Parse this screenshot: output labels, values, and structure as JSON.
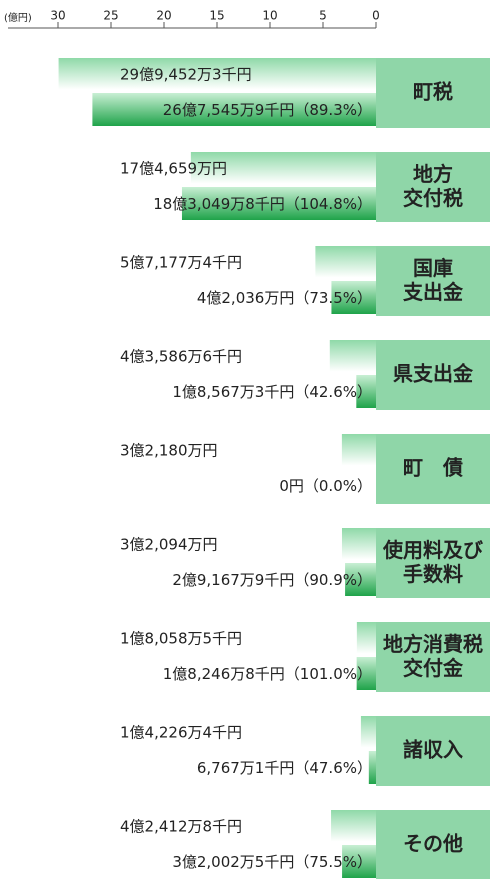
{
  "chart_data": {
    "type": "bar",
    "orientation": "horizontal",
    "axis_label": "(億円)",
    "xlim": [
      30,
      0
    ],
    "xticks": [
      30,
      25,
      20,
      15,
      10,
      5,
      0
    ],
    "categories": [
      "町税",
      "地方\n交付税",
      "国庫\n支出金",
      "県支出金",
      "町　債",
      "使用料及び\n手数料",
      "地方消費税\n交付金",
      "諸収入",
      "その他"
    ],
    "category_color": "#8fd6a8",
    "series": [
      {
        "color": "#8fd9a8",
        "values": [
          29.94523,
          17.4659,
          5.71774,
          4.35866,
          3.218,
          3.2094,
          1.80585,
          1.42264,
          4.24128
        ],
        "value_labels": [
          "29億9,452万3千円",
          "17億4,659万円",
          "5億7,177万4千円",
          "4億3,586万6千円",
          "3億2,180万円",
          "3億2,094万円",
          "1億8,058万5千円",
          "1億4,226万4千円",
          "4億2,412万8千円"
        ]
      },
      {
        "color": "#1fa34a",
        "values": [
          26.75459,
          18.30498,
          4.2036,
          1.85673,
          0,
          2.91679,
          1.82468,
          0.67671,
          3.20025
        ],
        "value_labels": [
          "26億7,545万9千円",
          "18億3,049万8千円",
          "4億2,036万円",
          "1億8,567万3千円",
          "0円",
          "2億9,167万9千円",
          "1億8,246万8千円",
          "6,767万1千円",
          "3億2,002万5千円"
        ],
        "ratio_labels": [
          "（89.3%）",
          "（104.8%）",
          "（73.5%）",
          "（42.6%）",
          "（0.0%）",
          "（90.9%）",
          "（101.0%）",
          "（47.6%）",
          "（75.5%）"
        ]
      }
    ]
  }
}
